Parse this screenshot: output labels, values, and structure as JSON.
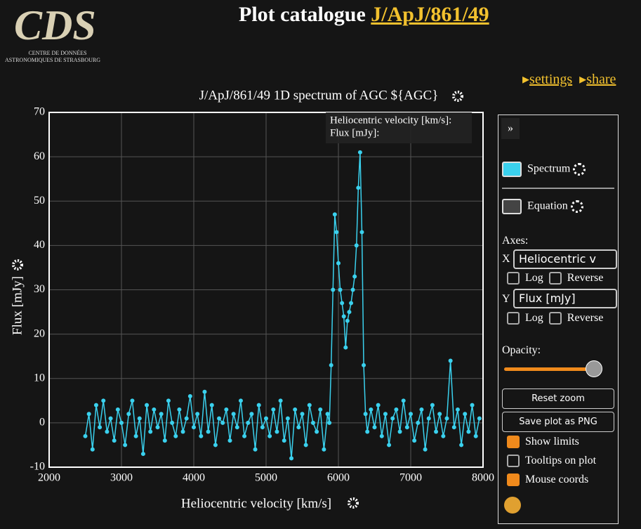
{
  "header": {
    "logo": "CDS",
    "logo_line1": "Centre de Données",
    "logo_line2": "astronomiques de Strasbourg",
    "title": "Plot catalogue",
    "link": "J/ApJ/861/49",
    "settings": "settings",
    "share": "share"
  },
  "chart_data": {
    "type": "line",
    "title": "J/ApJ/861/49 1D spectrum of AGC ${AGC}",
    "x_label": "Heliocentric velocity [km/s]",
    "y_label": "Flux [mJy]",
    "color": "#3ad1ee",
    "grid": true,
    "xlim": [
      2000,
      8000
    ],
    "ylim": [
      -10,
      70
    ],
    "xticks": [
      2000,
      3000,
      4000,
      5000,
      6000,
      7000,
      8000
    ],
    "yticks": [
      -10,
      0,
      10,
      20,
      30,
      40,
      50,
      60,
      70
    ],
    "x": [
      2500,
      2550,
      2600,
      2650,
      2700,
      2750,
      2800,
      2850,
      2900,
      2950,
      3000,
      3050,
      3100,
      3150,
      3200,
      3250,
      3300,
      3350,
      3400,
      3450,
      3500,
      3550,
      3600,
      3650,
      3700,
      3750,
      3800,
      3850,
      3900,
      3950,
      4000,
      4050,
      4100,
      4150,
      4200,
      4250,
      4300,
      4350,
      4400,
      4450,
      4500,
      4550,
      4600,
      4650,
      4700,
      4750,
      4800,
      4850,
      4900,
      4950,
      5000,
      5050,
      5100,
      5150,
      5200,
      5250,
      5300,
      5350,
      5400,
      5450,
      5500,
      5550,
      5600,
      5650,
      5700,
      5750,
      5800,
      5850,
      5875,
      5900,
      5925,
      5950,
      5975,
      6000,
      6025,
      6050,
      6075,
      6100,
      6125,
      6150,
      6175,
      6200,
      6225,
      6250,
      6275,
      6300,
      6325,
      6350,
      6375,
      6400,
      6450,
      6500,
      6550,
      6600,
      6650,
      6700,
      6750,
      6800,
      6850,
      6900,
      6950,
      7000,
      7050,
      7100,
      7150,
      7200,
      7250,
      7300,
      7350,
      7400,
      7450,
      7500,
      7550,
      7600,
      7650,
      7700,
      7750,
      7800,
      7850,
      7900,
      7950
    ],
    "values": [
      -3,
      2,
      -6,
      4,
      -1,
      5,
      -2,
      1,
      -4,
      3,
      0,
      -5,
      2,
      5,
      -3,
      1,
      -7,
      4,
      -2,
      3,
      -1,
      2,
      -4,
      5,
      0,
      -3,
      3,
      -2,
      1,
      6,
      -1,
      2,
      -3,
      7,
      -2,
      4,
      -5,
      1,
      0,
      3,
      -4,
      2,
      -1,
      5,
      -3,
      0,
      2,
      -6,
      4,
      -1,
      1,
      -3,
      3,
      -2,
      5,
      -4,
      1,
      -8,
      3,
      -1,
      2,
      -5,
      4,
      0,
      -2,
      3,
      -6,
      2,
      0,
      13,
      30,
      47,
      43,
      36,
      30,
      27,
      24,
      17,
      23,
      25,
      27,
      30,
      33,
      40,
      53,
      61,
      43,
      13,
      2,
      -2,
      3,
      -1,
      4,
      -3,
      2,
      -5,
      1,
      3,
      -2,
      5,
      -1,
      2,
      -4,
      0,
      3,
      -6,
      1,
      4,
      -2,
      2,
      -3,
      1,
      14,
      -1,
      3,
      -5,
      2,
      -2,
      4,
      -3,
      1
    ]
  },
  "tooltip": {
    "x_label": "Heliocentric velocity [km/s]:",
    "y_label": "Flux [mJy]:"
  },
  "panel": {
    "toggle": "»",
    "series": [
      "Spectrum",
      "Equation"
    ],
    "axes": "Axes:",
    "x": "X",
    "y": "Y",
    "x_select": "Heliocentric v",
    "y_select": "Flux [mJy]",
    "log": "Log",
    "reverse": "Reverse",
    "opacity": "Opacity:",
    "reset": "Reset zoom",
    "save": "Save plot as PNG",
    "checks": [
      "Show limits",
      "Tooltips on plot",
      "Mouse coords"
    ]
  }
}
